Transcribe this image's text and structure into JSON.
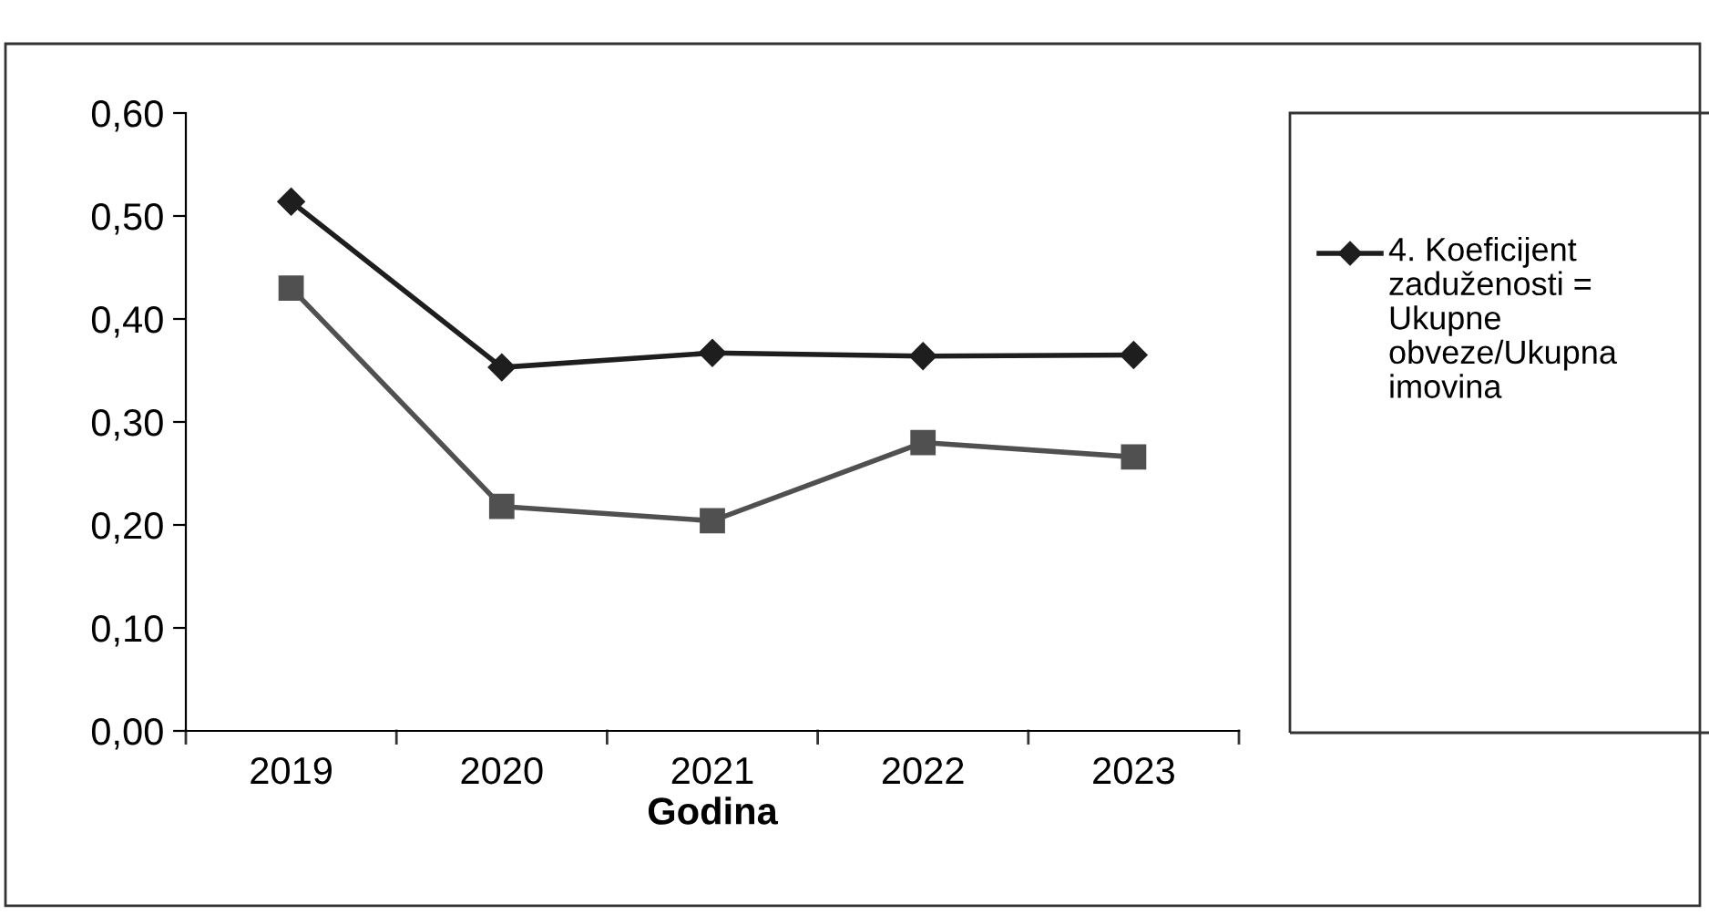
{
  "chart_data": {
    "type": "line",
    "xlabel": "Godina",
    "categories": [
      "2019",
      "2020",
      "2021",
      "2022",
      "2023"
    ],
    "series": [
      {
        "name": "4. Koeficijent zaduženosti = Ukupne obveze/Ukupna imovina",
        "color": "#1e1e1e",
        "marker": "diamond",
        "values": [
          0.514,
          0.353,
          0.367,
          0.364,
          0.365
        ]
      },
      {
        "color": "#505050",
        "marker": "square",
        "values": [
          0.43,
          0.218,
          0.204,
          0.28,
          0.266
        ]
      }
    ],
    "ylim": [
      0,
      0.6
    ],
    "yticks": [
      {
        "value": 0,
        "label": "0,00"
      },
      {
        "value": 0.1,
        "label": "0,10"
      },
      {
        "value": 0.2,
        "label": "0,20"
      },
      {
        "value": 0.3,
        "label": "0,30"
      },
      {
        "value": 0.4,
        "label": "0,40"
      },
      {
        "value": 0.5,
        "label": "0,50"
      },
      {
        "value": 0.6,
        "label": "0,60"
      }
    ],
    "grid": false,
    "legend": "right",
    "line_style": "solid"
  }
}
